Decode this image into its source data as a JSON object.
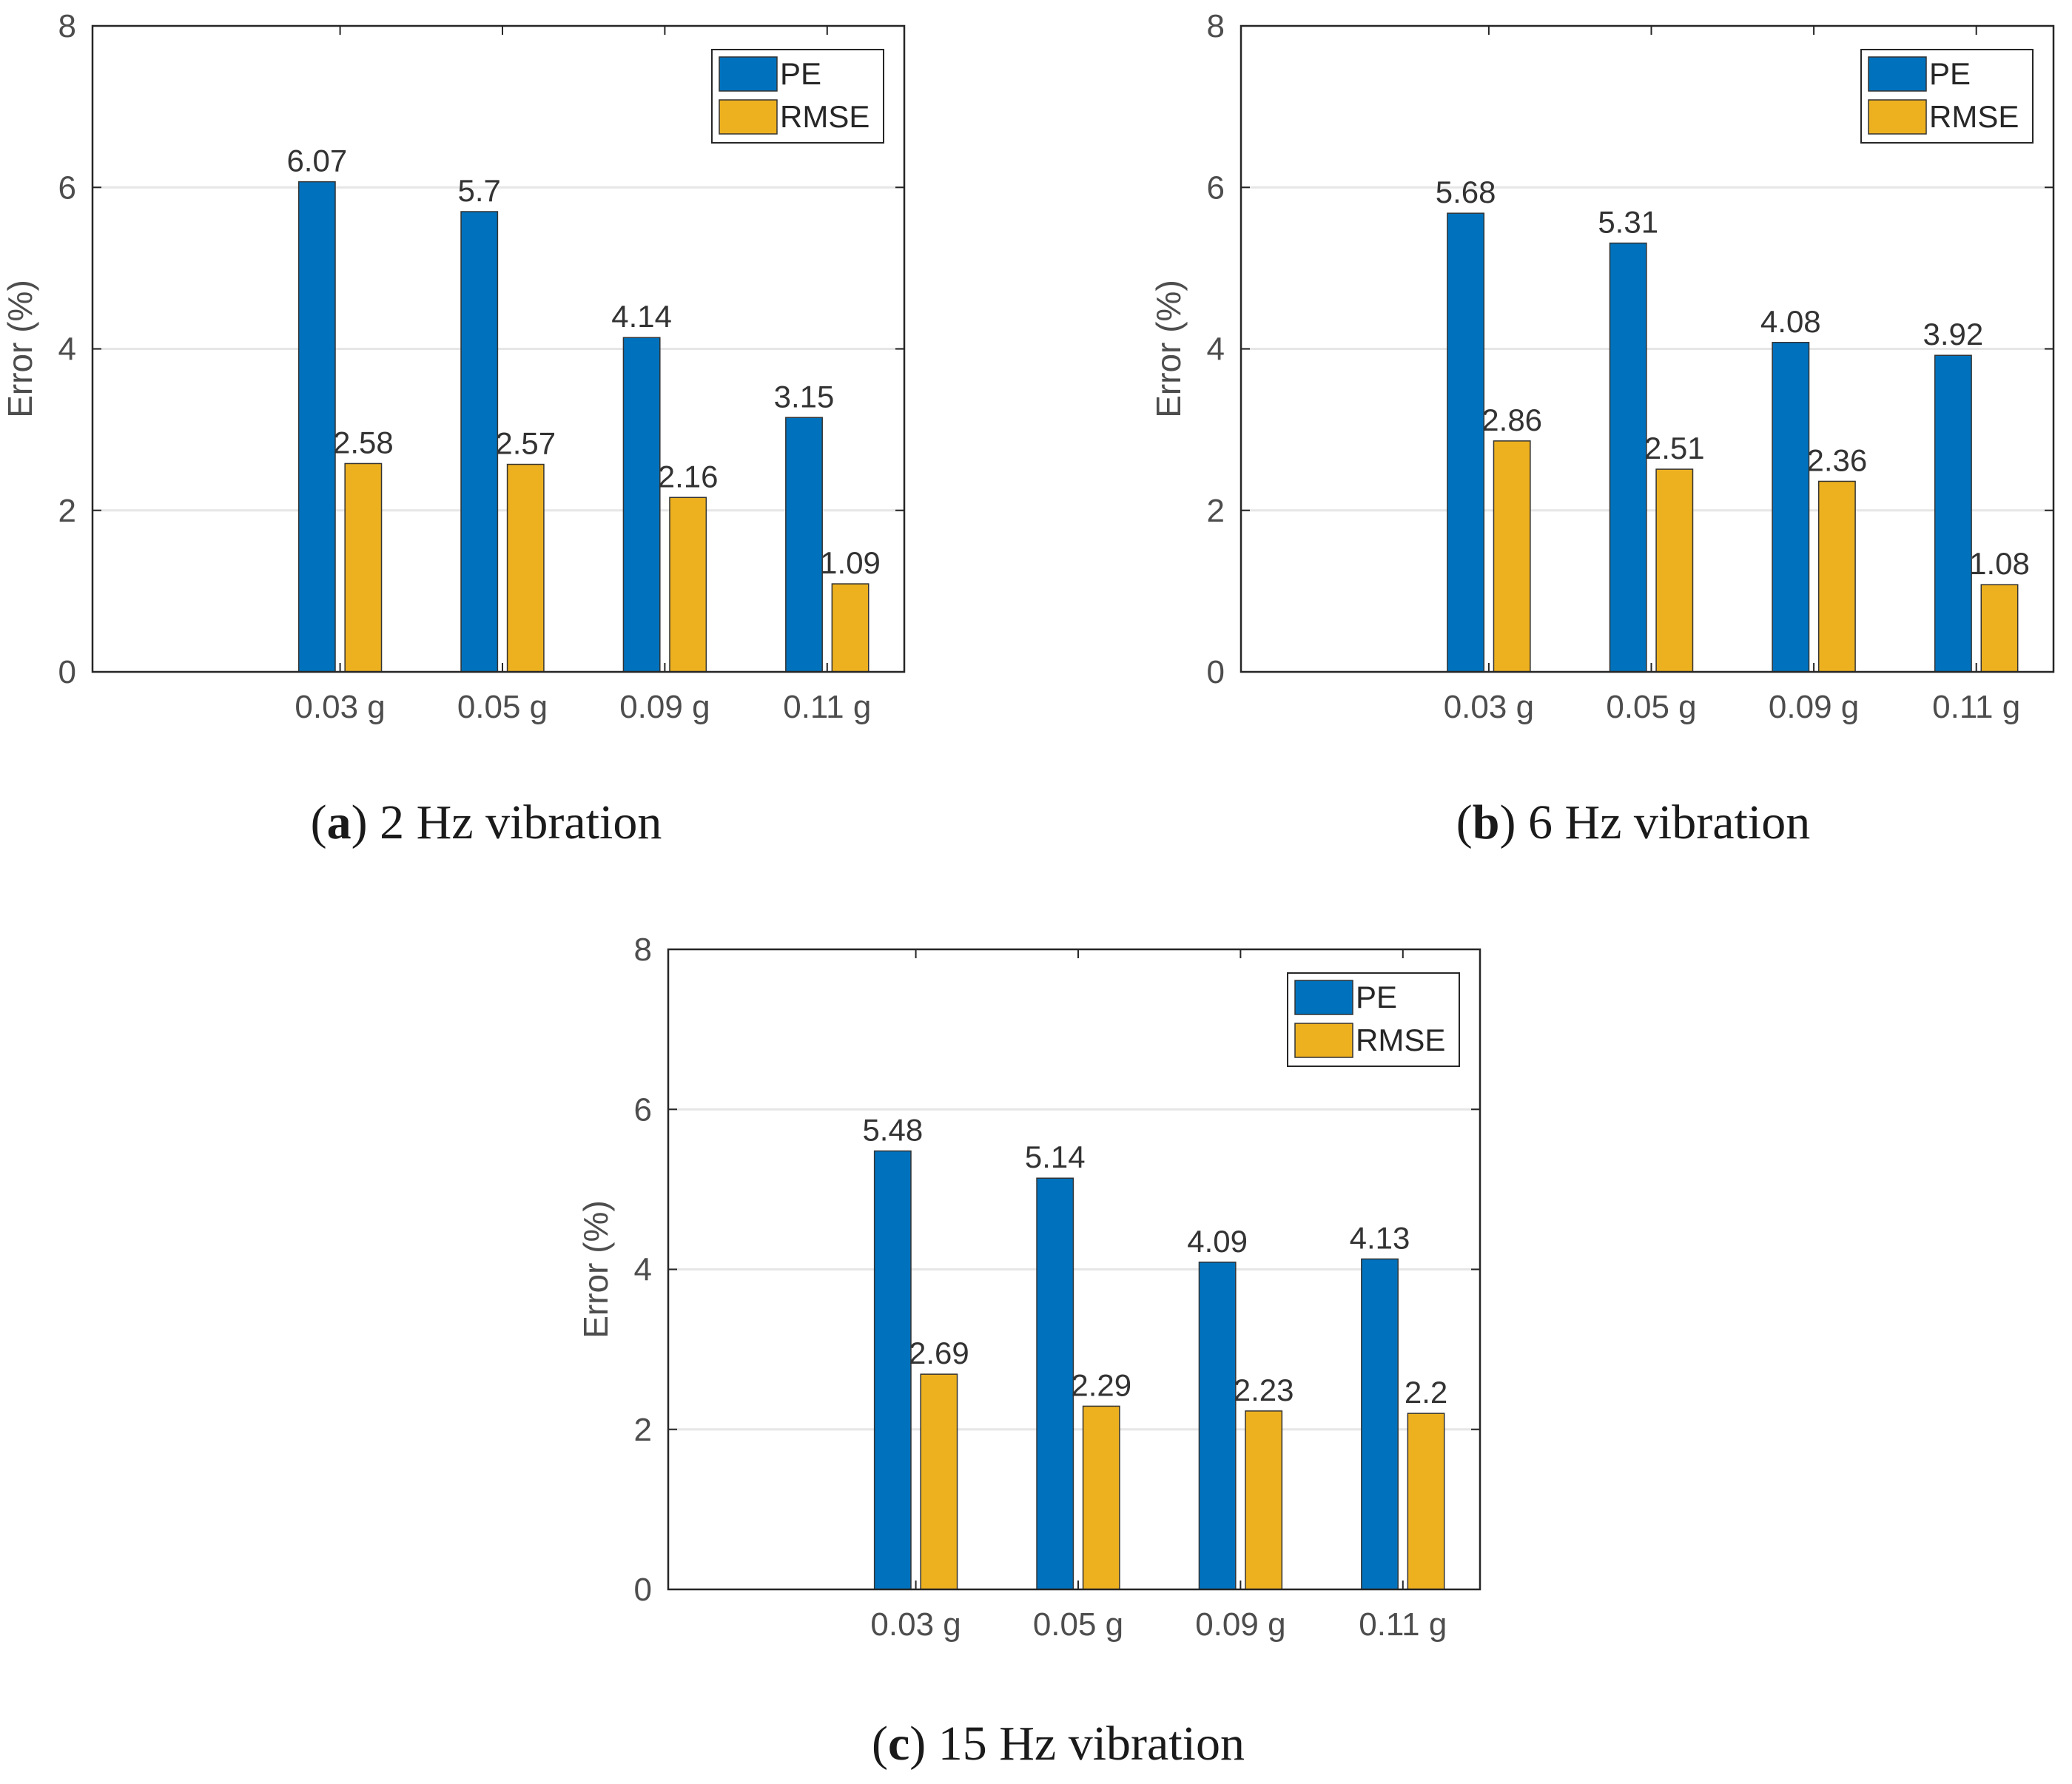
{
  "colors": {
    "pe": "#0072BD",
    "rmse": "#EDB120",
    "grid": "#e6e6e6",
    "axis": "#262626"
  },
  "chart_data": [
    {
      "type": "bar",
      "panel": "a",
      "caption": {
        "open": "(",
        "letter": "a",
        "close": ")",
        "text": " 2 Hz vibration"
      },
      "categories": [
        "0.03 g",
        "0.05 g",
        "0.09 g",
        "0.11 g"
      ],
      "series": [
        {
          "name": "PE",
          "values": [
            6.07,
            5.7,
            4.14,
            3.15
          ],
          "labels": [
            "6.07",
            "5.7",
            "4.14",
            "3.15"
          ]
        },
        {
          "name": "RMSE",
          "values": [
            2.58,
            2.57,
            2.16,
            1.09
          ],
          "labels": [
            "2.58",
            "2.57",
            "2.16",
            "1.09"
          ]
        }
      ],
      "xlabel": "",
      "ylabel": "Error (%)",
      "ylim": [
        0,
        8
      ],
      "yticks": [
        "0",
        "2",
        "4",
        "6",
        "8"
      ],
      "legend": "top-right",
      "grid": true
    },
    {
      "type": "bar",
      "panel": "b",
      "caption": {
        "open": "(",
        "letter": "b",
        "close": ")",
        "text": " 6 Hz vibration"
      },
      "categories": [
        "0.03 g",
        "0.05 g",
        "0.09 g",
        "0.11 g"
      ],
      "series": [
        {
          "name": "PE",
          "values": [
            5.68,
            5.31,
            4.08,
            3.92
          ],
          "labels": [
            "5.68",
            "5.31",
            "4.08",
            "3.92"
          ]
        },
        {
          "name": "RMSE",
          "values": [
            2.86,
            2.51,
            2.36,
            1.08
          ],
          "labels": [
            "2.86",
            "2.51",
            "2.36",
            "1.08"
          ]
        }
      ],
      "xlabel": "",
      "ylabel": "Error (%)",
      "ylim": [
        0,
        8
      ],
      "yticks": [
        "0",
        "2",
        "4",
        "6",
        "8"
      ],
      "legend": "top-right",
      "grid": true
    },
    {
      "type": "bar",
      "panel": "c",
      "caption": {
        "open": "(",
        "letter": "c",
        "close": ")",
        "text": " 15 Hz vibration"
      },
      "categories": [
        "0.03 g",
        "0.05 g",
        "0.09 g",
        "0.11 g"
      ],
      "series": [
        {
          "name": "PE",
          "values": [
            5.48,
            5.14,
            4.09,
            4.13
          ],
          "labels": [
            "5.48",
            "5.14",
            "4.09",
            "4.13"
          ]
        },
        {
          "name": "RMSE",
          "values": [
            2.69,
            2.29,
            2.23,
            2.2
          ],
          "labels": [
            "2.69",
            "2.29",
            "2.23",
            "2.2"
          ]
        }
      ],
      "xlabel": "",
      "ylabel": "Error (%)",
      "ylim": [
        0,
        8
      ],
      "yticks": [
        "0",
        "2",
        "4",
        "6",
        "8"
      ],
      "legend": "top-right",
      "grid": true
    }
  ]
}
